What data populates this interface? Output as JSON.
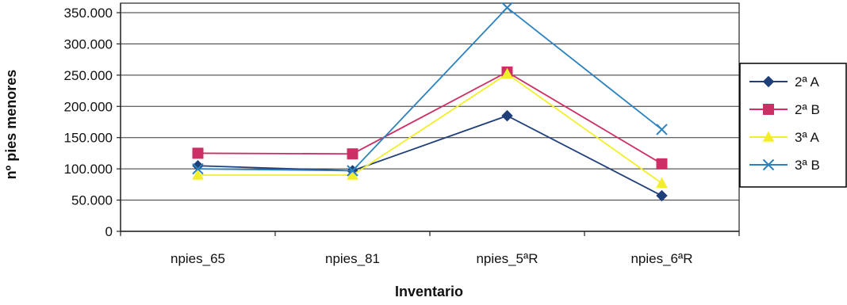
{
  "chart_data": {
    "type": "line",
    "title": "",
    "xlabel": "Inventario",
    "ylabel": "nº pies menores",
    "categories": [
      "npies_65",
      "npies_81",
      "npies_5ªR",
      "npies_6ªR"
    ],
    "ylim": [
      0,
      350000
    ],
    "yticks": [
      {
        "value": 0,
        "label": "0"
      },
      {
        "value": 50000,
        "label": "50.000"
      },
      {
        "value": 100000,
        "label": "100.000"
      },
      {
        "value": 150000,
        "label": "150.000"
      },
      {
        "value": 200000,
        "label": "200.000"
      },
      {
        "value": 250000,
        "label": "250.000"
      },
      {
        "value": 300000,
        "label": "300.000"
      },
      {
        "value": 350000,
        "label": "350.000"
      }
    ],
    "grid": true,
    "legend_position": "right",
    "series": [
      {
        "name": "2ª A",
        "color": "#1f3f7a",
        "marker": "diamond",
        "values": [
          105000,
          97000,
          185000,
          57000
        ]
      },
      {
        "name": "2ª B",
        "color": "#cc2f66",
        "marker": "square",
        "values": [
          125000,
          124000,
          255000,
          108000
        ]
      },
      {
        "name": "3ª A",
        "color": "#f2ef2a",
        "marker": "triangle",
        "values": [
          90000,
          90000,
          252000,
          77000
        ]
      },
      {
        "name": "3ª B",
        "color": "#2c82bf",
        "marker": "x",
        "values": [
          100000,
          97000,
          358000,
          163000
        ]
      }
    ]
  }
}
